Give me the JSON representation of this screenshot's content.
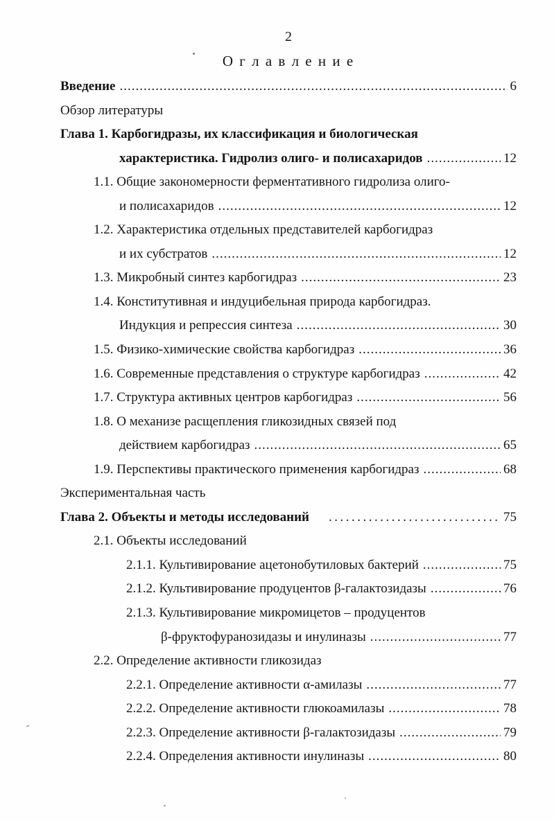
{
  "page": {
    "page_number": "2",
    "title": "О г л а в л е н и е"
  },
  "toc": {
    "rows": [
      {
        "text": "Введение",
        "kind": "top",
        "bold": true,
        "page": "6"
      },
      {
        "text": "Обзор литературы",
        "kind": "top",
        "bold": false,
        "page": null
      },
      {
        "text": "Глава 1. Карбогидразы, их классификация и биологическая",
        "kind": "top",
        "bold": true,
        "page": null
      },
      {
        "text": "характеристика. Гидролиз олиго- и полисахаридов",
        "kind": "cont1",
        "bold": true,
        "page": "12"
      },
      {
        "text": "1.1. Общие закономерности ферментативного гидролиза олиго-",
        "kind": "section",
        "bold": false,
        "page": null
      },
      {
        "text": "и полисахаридов",
        "kind": "cont1",
        "bold": false,
        "page": "12"
      },
      {
        "text": "1.2. Характеристика отдельных представителей карбогидраз",
        "kind": "section",
        "bold": false,
        "page": null
      },
      {
        "text": "и их субстратов",
        "kind": "cont1",
        "bold": false,
        "page": "12"
      },
      {
        "text": "1.3. Микробный синтез карбогидраз",
        "kind": "section",
        "bold": false,
        "page": "23"
      },
      {
        "text": "1.4. Конститутивная и индуцибельная природа карбогидраз.",
        "kind": "section",
        "bold": false,
        "page": null
      },
      {
        "text": "Индукция и репрессия синтеза",
        "kind": "cont1",
        "bold": false,
        "page": "30"
      },
      {
        "text": "1.5. Физико-химические свойства карбогидраз",
        "kind": "section",
        "bold": false,
        "page": "36"
      },
      {
        "text": "1.6. Современные представления о структуре карбогидраз",
        "kind": "section",
        "bold": false,
        "page": "42"
      },
      {
        "text": "1.7. Структура активных центров карбогидраз",
        "kind": "section",
        "bold": false,
        "page": "56"
      },
      {
        "text": "1.8. О механизе расщепления гликозидных связей под",
        "kind": "section",
        "bold": false,
        "page": null
      },
      {
        "text": "действием карбогидраз",
        "kind": "cont1",
        "bold": false,
        "page": "65"
      },
      {
        "text": "1.9. Перспективы практического применения карбогидраз",
        "kind": "section",
        "bold": false,
        "page": "68"
      },
      {
        "text": "Экспериментальная часть",
        "kind": "top",
        "bold": false,
        "page": null
      },
      {
        "text": "Глава 2. Объекты и методы исследований",
        "kind": "top",
        "bold": true,
        "page": "75",
        "leader": "sparse"
      },
      {
        "text": "2.1. Объекты исследований",
        "kind": "section",
        "bold": false,
        "page": null
      },
      {
        "text": "2.1.1. Культивирование ацетонобутиловых бактерий",
        "kind": "subsection",
        "bold": false,
        "page": "75"
      },
      {
        "text": "2.1.2. Культивирование продуцентов β-галактозидазы",
        "kind": "subsection",
        "bold": false,
        "page": "76"
      },
      {
        "text": "2.1.3. Культивирование микромицетов – продуцентов",
        "kind": "subsection",
        "bold": false,
        "page": null
      },
      {
        "text": "β-фруктофуранозидазы и инулиназы",
        "kind": "cont2",
        "bold": false,
        "page": "77"
      },
      {
        "text": "2.2. Определение активности гликозидаз",
        "kind": "section",
        "bold": false,
        "page": null
      },
      {
        "text": "2.2.1. Определение активности α-амилазы",
        "kind": "subsection",
        "bold": false,
        "page": "77"
      },
      {
        "text": "2.2.2. Определение активности глюкоамилазы",
        "kind": "subsection",
        "bold": false,
        "page": "78"
      },
      {
        "text": "2.2.3. Определение активности β-галактозидазы",
        "kind": "subsection",
        "bold": false,
        "page": "79"
      },
      {
        "text": "2.2.4. Определения активности инулиназы",
        "kind": "subsection",
        "bold": false,
        "page": "80"
      }
    ]
  }
}
